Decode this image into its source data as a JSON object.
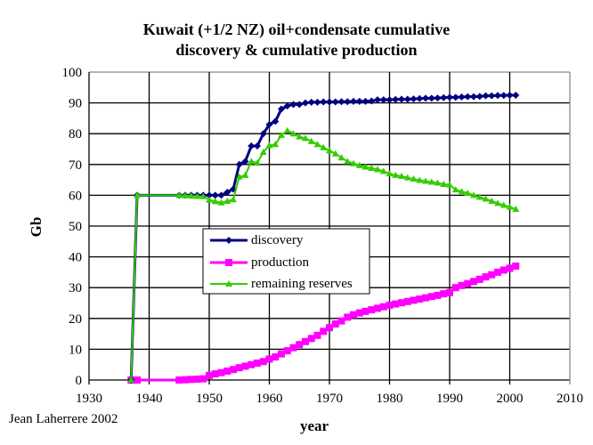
{
  "chart_data": {
    "type": "line",
    "title": [
      "Kuwait (+1/2 NZ) oil+condensate cumulative",
      "discovery & cumulative production"
    ],
    "xlabel": "year",
    "ylabel": "Gb",
    "xlim": [
      1930,
      2010
    ],
    "ylim": [
      0,
      100
    ],
    "xticks": [
      1930,
      1940,
      1950,
      1960,
      1970,
      1980,
      1990,
      2000,
      2010
    ],
    "yticks": [
      0,
      10,
      20,
      30,
      40,
      50,
      60,
      70,
      80,
      90,
      100
    ],
    "grid": true,
    "legend_position": "center",
    "credit": "Jean Laherrere 2002",
    "x": [
      1937,
      1938,
      1945,
      1946,
      1947,
      1948,
      1949,
      1950,
      1951,
      1952,
      1953,
      1954,
      1955,
      1956,
      1957,
      1958,
      1959,
      1960,
      1961,
      1962,
      1963,
      1964,
      1965,
      1966,
      1967,
      1968,
      1969,
      1970,
      1971,
      1972,
      1973,
      1974,
      1975,
      1976,
      1977,
      1978,
      1979,
      1980,
      1981,
      1982,
      1983,
      1984,
      1985,
      1986,
      1987,
      1988,
      1989,
      1990,
      1991,
      1992,
      1993,
      1994,
      1995,
      1996,
      1997,
      1998,
      1999,
      2000,
      2001
    ],
    "series": [
      {
        "name": "discovery",
        "color": "#000080",
        "marker": "diamond",
        "values": [
          0,
          60,
          60,
          60,
          60,
          60,
          60,
          60,
          60,
          60,
          61,
          62,
          70,
          71,
          76,
          76,
          80,
          83,
          84,
          88,
          89,
          89.5,
          89.5,
          90,
          90.2,
          90.2,
          90.3,
          90.3,
          90.3,
          90.4,
          90.4,
          90.5,
          90.5,
          90.5,
          90.6,
          91,
          91,
          91,
          91.1,
          91.2,
          91.2,
          91.3,
          91.4,
          91.5,
          91.5,
          91.6,
          91.7,
          91.8,
          91.8,
          91.9,
          92,
          92,
          92.1,
          92.3,
          92.3,
          92.4,
          92.4,
          92.5,
          92.5
        ]
      },
      {
        "name": "production",
        "color": "#ff00ff",
        "marker": "square",
        "values": [
          0,
          0,
          0,
          0.1,
          0.2,
          0.3,
          0.4,
          1.5,
          2,
          2.4,
          2.9,
          3.4,
          4,
          4.5,
          5,
          5.5,
          6,
          6.8,
          7.5,
          8.5,
          9.5,
          10.5,
          11.5,
          12.5,
          13.5,
          14.5,
          15.8,
          17,
          18.2,
          19.2,
          20.4,
          21.2,
          21.8,
          22.3,
          22.8,
          23.3,
          23.8,
          24.3,
          24.7,
          25.1,
          25.5,
          25.9,
          26.3,
          26.7,
          27.1,
          27.5,
          28,
          28.4,
          30,
          30.7,
          31.3,
          32,
          32.7,
          33.5,
          34.2,
          35,
          35.7,
          36.3,
          37
        ]
      },
      {
        "name": "remaining reserves",
        "color": "#33cc00",
        "marker": "triangle",
        "values": [
          0,
          60,
          60,
          59.9,
          59.8,
          59.7,
          59.6,
          58.5,
          58,
          57.6,
          58.1,
          58.6,
          66,
          66.5,
          71,
          70.5,
          74,
          76.2,
          76.5,
          79.5,
          81,
          80,
          79,
          78.5,
          77.5,
          76.5,
          75.5,
          74.5,
          73.5,
          72.2,
          71,
          70.3,
          69.7,
          69.2,
          68.8,
          68.4,
          67.8,
          67,
          66.5,
          66.2,
          65.7,
          65.3,
          64.9,
          64.6,
          64.3,
          64,
          63.6,
          63.4,
          61.8,
          61.2,
          60.7,
          60,
          59.4,
          58.8,
          58.1,
          57.4,
          56.8,
          56.2,
          55.5
        ]
      }
    ]
  }
}
